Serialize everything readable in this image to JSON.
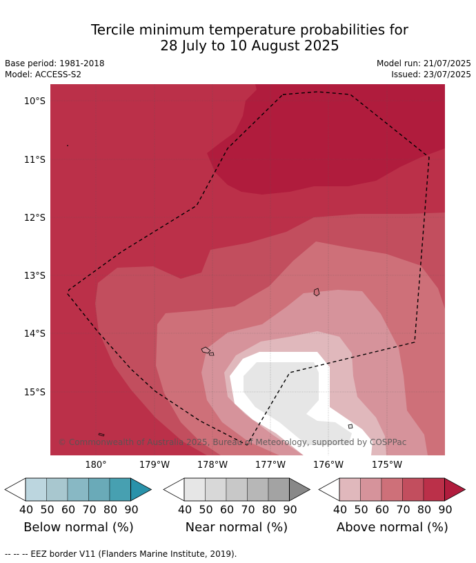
{
  "header": {
    "title_line1": "Tercile minimum temperature probabilities for",
    "title_line2": "28 July to 10 August 2025",
    "base_period": "Base period: 1981-2018",
    "model": "Model: ACCESS-S2",
    "model_run": "Model run: 21/07/2025",
    "issued": "Issued: 23/07/2025"
  },
  "map": {
    "lat_ticks": [
      "10°S",
      "11°S",
      "12°S",
      "13°S",
      "14°S",
      "15°S"
    ],
    "lon_ticks": [
      "180°",
      "179°W",
      "178°W",
      "177°W",
      "176°W",
      "175°W"
    ],
    "copyright": "© Commonwealth of Australia 2025, Bureau of Meteorology, supported by COSPPac",
    "colors": {
      "above_80": "#bb3049",
      "above_90": "#b01c3d",
      "above_70": "#c24e5e",
      "above_60": "#ce7079",
      "above_50": "#d6939b",
      "above_40": "#e0b8bc",
      "near_40": "#e6e6e6",
      "white": "#ffffff"
    }
  },
  "colorbars": {
    "ticks": [
      "40",
      "50",
      "60",
      "70",
      "80",
      "90"
    ],
    "below": {
      "label": "Below normal (%)",
      "colors": [
        "#bcd6df",
        "#a8c7cf",
        "#88b8c4",
        "#6aaab8",
        "#47a0b1",
        "#2992aa"
      ]
    },
    "near": {
      "label": "Near normal (%)",
      "colors": [
        "#e6e6e6",
        "#d8d8d8",
        "#c8c8c8",
        "#b7b7b7",
        "#a3a3a3",
        "#888888"
      ]
    },
    "above": {
      "label": "Above normal (%)",
      "colors": [
        "#e0b8bc",
        "#d6939b",
        "#ce7079",
        "#c24e5e",
        "#bb3049",
        "#b01c3d"
      ]
    }
  },
  "footer": {
    "eez_note": "--  --  -- EEZ border V11 (Flanders Marine Institute, 2019)."
  }
}
